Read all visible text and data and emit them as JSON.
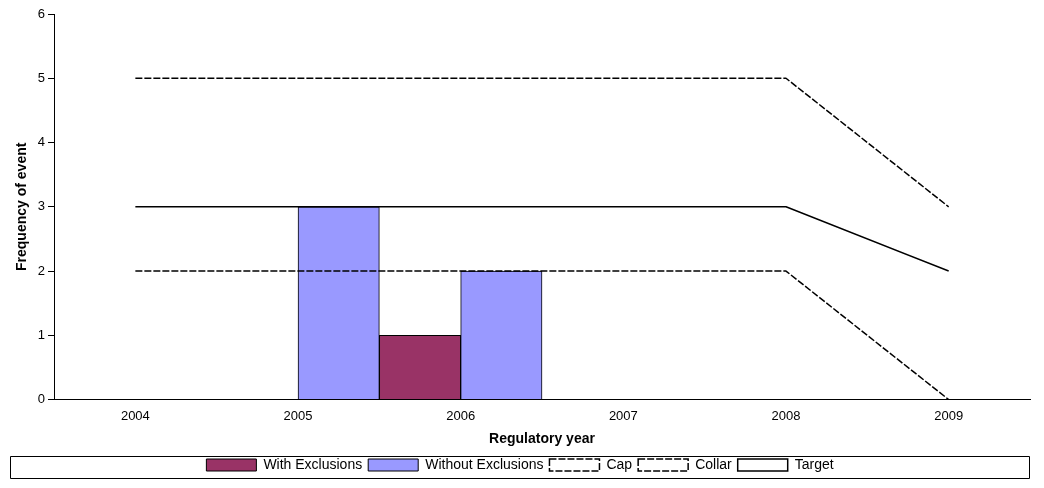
{
  "chart_data": {
    "type": "bar",
    "xlabel": "Regulatory year",
    "ylabel": "Frequency of event",
    "categories": [
      "2004",
      "2005",
      "2006",
      "2007",
      "2008",
      "2009"
    ],
    "series": [
      {
        "name": "With Exclusions",
        "color": "#993366",
        "values": [
          null,
          null,
          1,
          null,
          null,
          null
        ]
      },
      {
        "name": "Without Exclusions",
        "color": "#9999ff",
        "values": [
          null,
          3,
          2,
          null,
          null,
          null
        ]
      },
      {
        "name": "Cap",
        "type": "line",
        "color": "#000000",
        "line_style": "dashed",
        "values": [
          5,
          5,
          5,
          5,
          5,
          3
        ]
      },
      {
        "name": "Collar",
        "type": "line",
        "color": "#000000",
        "line_style": "dashed",
        "values": [
          2,
          2,
          2,
          2,
          2,
          0
        ]
      },
      {
        "name": "Target",
        "type": "line",
        "color": "#000000",
        "line_style": "solid",
        "values": [
          3,
          3,
          3,
          3,
          3,
          2
        ]
      }
    ],
    "ylim": [
      0,
      6
    ],
    "yticks": [
      0,
      1,
      2,
      3,
      4,
      5,
      6
    ],
    "grid": false,
    "legend": "bottom",
    "marker": "none"
  }
}
